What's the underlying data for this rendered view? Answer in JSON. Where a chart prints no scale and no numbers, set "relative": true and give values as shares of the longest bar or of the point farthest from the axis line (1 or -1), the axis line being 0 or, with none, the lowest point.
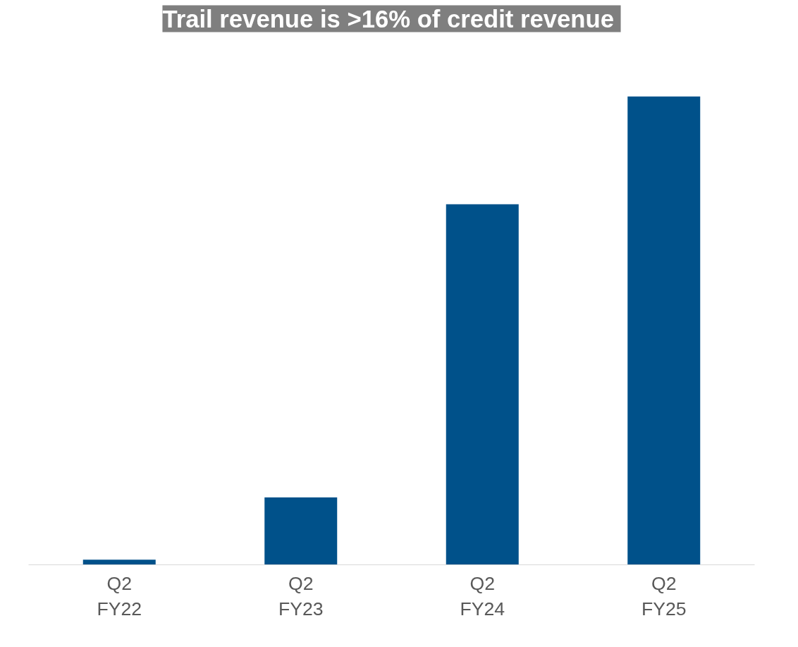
{
  "chart_data": {
    "type": "bar",
    "title": "Trail revenue is >16%  of credit revenue",
    "relative": true,
    "categories": [
      "Q2\nFY22",
      "Q2\nFY23",
      "Q2\nFY24",
      "Q2\nFY25"
    ],
    "values": [
      0.011,
      0.144,
      0.77,
      1
    ],
    "color": "#00518a"
  }
}
